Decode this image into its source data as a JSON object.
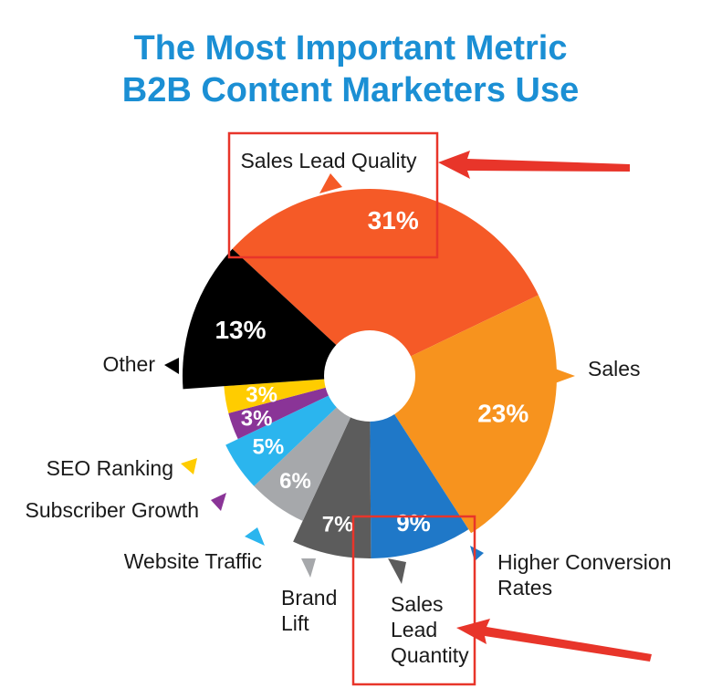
{
  "title": {
    "line1": "The Most Important Metric",
    "line2": "B2B Content Marketers Use"
  },
  "chart_data": {
    "type": "pie",
    "title": "The Most Important Metric B2B Content Marketers Use",
    "categories": [
      "Sales Lead Quality",
      "Sales",
      "Higher Conversion Rates",
      "Sales Lead Quantity",
      "Brand Lift",
      "Website Traffic",
      "Subscriber Growth",
      "SEO Ranking",
      "Other"
    ],
    "values": [
      31,
      23,
      9,
      7,
      6,
      5,
      3,
      3,
      13
    ],
    "value_labels": [
      "31%",
      "23%",
      "9%",
      "7%",
      "6%",
      "5%",
      "3%",
      "3%",
      "13%"
    ],
    "colors": [
      "#f55a27",
      "#f7931e",
      "#1f78c8",
      "#5c5c5c",
      "#a6a8ab",
      "#2bb5ee",
      "#8a3497",
      "#ffcc00",
      "#000000"
    ],
    "highlighted": [
      "Sales Lead Quality",
      "Sales Lead Quantity"
    ],
    "highlight_color": "#e8352a",
    "donut_hole": true
  }
}
